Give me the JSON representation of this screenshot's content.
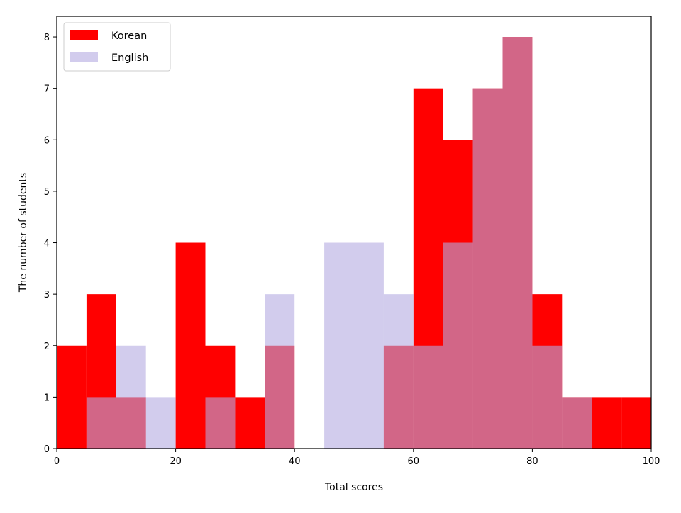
{
  "chart_data": {
    "type": "bar",
    "subtype": "overlapping-histogram",
    "title": "",
    "xlabel": "Total scores",
    "ylabel": "The number of students",
    "xlim": [
      0,
      100
    ],
    "ylim": [
      0,
      8.4
    ],
    "xticks": [
      0,
      20,
      40,
      60,
      80,
      100
    ],
    "yticks": [
      0,
      1,
      2,
      3,
      4,
      5,
      6,
      7,
      8
    ],
    "bin_width": 5,
    "bin_starts": [
      0,
      5,
      10,
      15,
      20,
      25,
      30,
      35,
      40,
      45,
      50,
      55,
      60,
      65,
      70,
      75,
      80,
      85,
      90,
      95
    ],
    "series": [
      {
        "name": "Korean",
        "color": "#ff0000",
        "opacity": 1.0,
        "values": [
          2,
          3,
          1,
          0,
          4,
          2,
          1,
          2,
          0,
          0,
          0,
          2,
          7,
          6,
          7,
          8,
          3,
          1,
          1,
          1
        ]
      },
      {
        "name": "English",
        "color": "#b4aae1",
        "opacity": 0.6,
        "values": [
          0,
          1,
          2,
          1,
          0,
          1,
          0,
          3,
          0,
          4,
          4,
          3,
          2,
          4,
          7,
          8,
          2,
          1,
          0,
          0
        ]
      }
    ],
    "legend": {
      "position": "top-left"
    },
    "grid": false
  }
}
